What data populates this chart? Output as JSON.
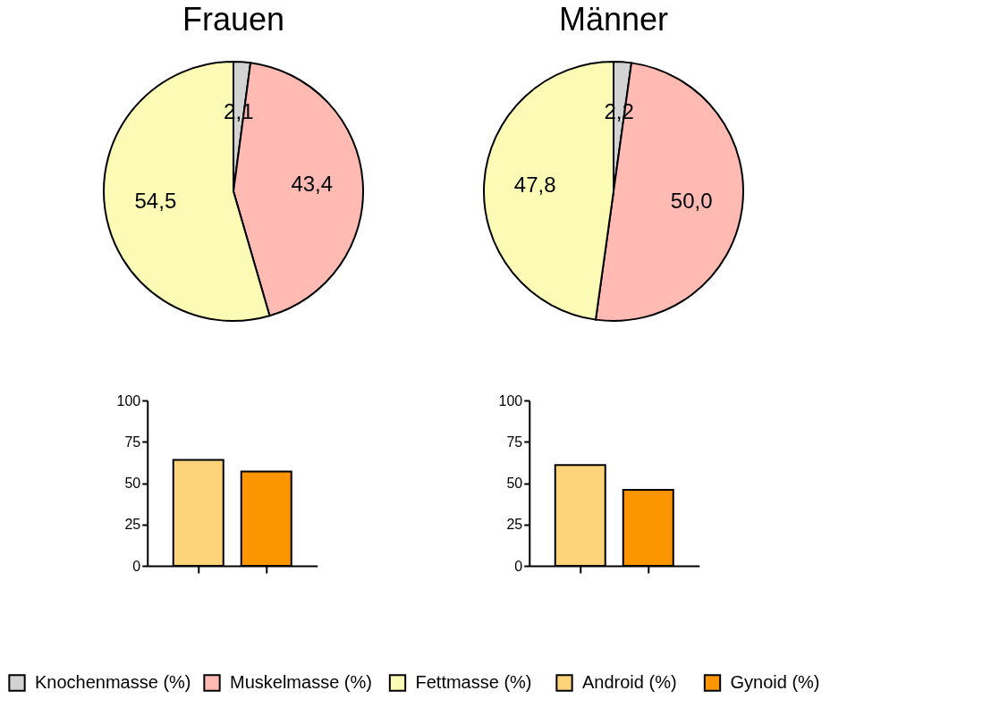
{
  "chart_data": [
    {
      "type": "pie",
      "title": "Frauen",
      "categories": [
        "Knochenmasse (%)",
        "Muskelmasse (%)",
        "Fettmasse (%)"
      ],
      "values": [
        2.1,
        43.4,
        54.5
      ],
      "value_labels": [
        "2,1",
        "43,4",
        "54,5"
      ],
      "colors": [
        "#d3d3d3",
        "#ffbbb3",
        "#fcfbb6"
      ],
      "legend": "bottom"
    },
    {
      "type": "pie",
      "title": "Männer",
      "categories": [
        null,
        null,
        null
      ],
      "values": [
        2.2,
        50.0,
        47.8
      ],
      "value_labels": [
        "2,2",
        "50,0",
        "47,8"
      ],
      "colors": [
        "#d3d3d3",
        "#ffbbb3",
        "#fcfbb6"
      ]
    },
    {
      "type": "bar",
      "categories": [
        null,
        null
      ],
      "stacked": true,
      "legend": "bottom",
      "tick_labels": "y",
      "ylim": [
        0,
        100
      ],
      "yticks": [
        0,
        25,
        50,
        75,
        100
      ],
      "series": [
        {
          "name": "Android (%)",
          "color": "#fdd47a",
          "values": [
            64,
            null
          ]
        },
        {
          "name": "Gynoid (%)",
          "color": "#fd9500",
          "values": [
            null,
            57
          ]
        }
      ]
    },
    {
      "type": "bar",
      "categories": [
        null,
        null
      ],
      "stacked": true,
      "legend": "bottom",
      "tick_labels": "y",
      "ylim": [
        0,
        100
      ],
      "yticks": [
        0,
        25,
        50,
        75,
        100
      ],
      "series": [
        {
          "name": "Android (%)",
          "color": "#fdd47a",
          "values": [
            61,
            null
          ]
        },
        {
          "name": "Gynoid (%)",
          "color": "#fd9500",
          "values": [
            null,
            46
          ]
        }
      ]
    }
  ]
}
